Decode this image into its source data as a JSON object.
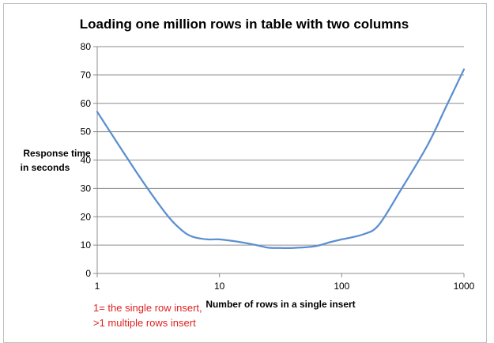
{
  "chart_data": {
    "type": "line",
    "title": "Loading one million rows in table with two columns",
    "xlabel": "Number of rows in a single insert",
    "ylabel_lines": [
      "Response time",
      "in seconds"
    ],
    "x_scale": "log",
    "xlim": [
      1,
      1000
    ],
    "ylim": [
      0,
      80
    ],
    "x_ticks": [
      1,
      10,
      100,
      1000
    ],
    "x_tick_labels": [
      "1",
      "10",
      "100",
      "1000"
    ],
    "y_ticks": [
      0,
      10,
      20,
      30,
      40,
      50,
      60,
      70,
      80
    ],
    "y_tick_labels": [
      "0",
      "10",
      "20",
      "30",
      "40",
      "50",
      "60",
      "70",
      "80"
    ],
    "grid": "horizontal",
    "legend": "none",
    "series": [
      {
        "color": "#5b8fd0",
        "points": [
          [
            1,
            57
          ],
          [
            2,
            37
          ],
          [
            3,
            26
          ],
          [
            4,
            19
          ],
          [
            5,
            15
          ],
          [
            6,
            13
          ],
          [
            8,
            12
          ],
          [
            10,
            12
          ],
          [
            15,
            11
          ],
          [
            20,
            10
          ],
          [
            25,
            9.1
          ],
          [
            30,
            9
          ],
          [
            40,
            9
          ],
          [
            60,
            9.6
          ],
          [
            80,
            11
          ],
          [
            100,
            12
          ],
          [
            150,
            13.8
          ],
          [
            200,
            17
          ],
          [
            300,
            29
          ],
          [
            500,
            45
          ],
          [
            700,
            58
          ],
          [
            1000,
            72
          ]
        ]
      }
    ],
    "annotations": [
      "1= the single row  insert,",
      ">1 multiple rows insert"
    ]
  }
}
